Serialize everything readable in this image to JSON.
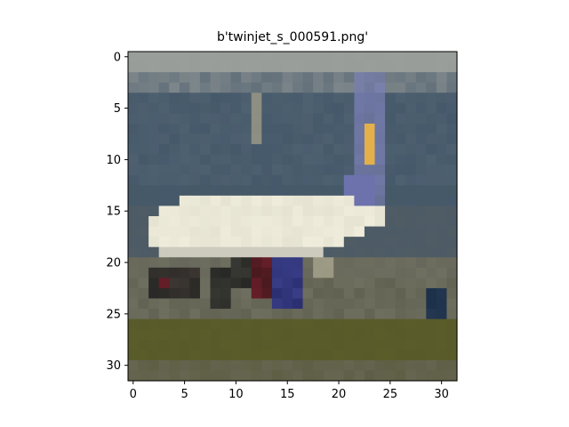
{
  "title": "b'twinjet_s_000591.png'",
  "image": {
    "rows": 32,
    "cols": 32,
    "description_colors": {
      "sky": "#9a9e9b",
      "mountain": "#46596a",
      "fuselage": "#efecdc",
      "tail": "#7a7fb4",
      "tail_stripe": "#e3b04a",
      "grass": "#5a5c2a",
      "tarmac": "#6f6f60"
    }
  },
  "axes": {
    "x_ticks": [
      0,
      5,
      10,
      15,
      20,
      25,
      30
    ],
    "y_ticks": [
      0,
      5,
      10,
      15,
      20,
      25,
      30
    ],
    "x_range": [
      -0.5,
      31.5
    ],
    "y_range": [
      -0.5,
      31.5
    ]
  }
}
